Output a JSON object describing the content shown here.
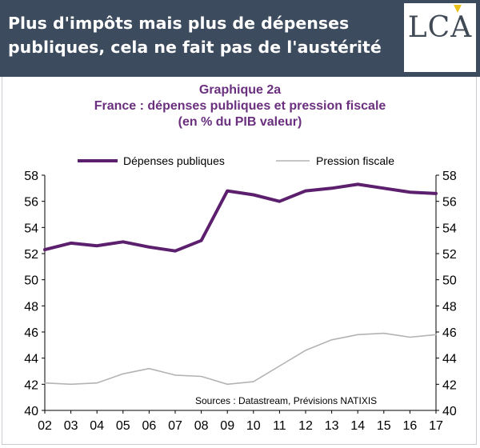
{
  "header": {
    "headline": "Plus d'impôts mais plus de dépenses publiques, cela ne fait pas de l'austérité",
    "logo_text": "LCA"
  },
  "chart_data": {
    "type": "line",
    "title_lines": [
      "Graphique 2a",
      "France : dépenses publiques et pression fiscale",
      "(en % du PIB valeur)"
    ],
    "categories": [
      "02",
      "03",
      "04",
      "05",
      "06",
      "07",
      "08",
      "09",
      "10",
      "11",
      "12",
      "13",
      "14",
      "15",
      "16",
      "17"
    ],
    "ylim": [
      40,
      58
    ],
    "yticks": [
      40,
      42,
      44,
      46,
      48,
      50,
      52,
      54,
      56,
      58
    ],
    "series": [
      {
        "name": "Dépenses publiques",
        "color": "#5b1f6e",
        "values": [
          52.3,
          52.8,
          52.6,
          52.9,
          52.5,
          52.2,
          53.0,
          56.8,
          56.5,
          56.0,
          56.8,
          57.0,
          57.3,
          57.0,
          56.7,
          56.6
        ]
      },
      {
        "name": "Pression fiscale",
        "color": "#b3b3b3",
        "values": [
          42.1,
          42.0,
          42.1,
          42.8,
          43.2,
          42.7,
          42.6,
          42.0,
          42.2,
          43.4,
          44.6,
          45.4,
          45.8,
          45.9,
          45.6,
          45.8
        ]
      }
    ],
    "source_note": "Sources : Datastream, Prévisions NATIXIS"
  }
}
